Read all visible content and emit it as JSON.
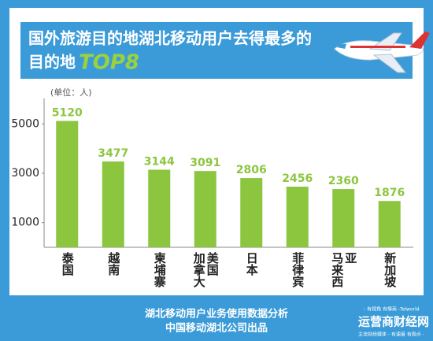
{
  "chart_data": {
    "type": "bar",
    "title": "国外旅游目的地湖北移动用户去得最多的",
    "title_line2": "目的地",
    "title_highlight": "TOP8",
    "unit_label": "(单位：人)",
    "categories": [
      "泰国",
      "越南",
      "柬埔寨",
      "加拿大 美国",
      "日本",
      "菲律宾",
      "马来西亚",
      "新加坡"
    ],
    "values": [
      5120,
      3477,
      3144,
      3091,
      2806,
      2456,
      2360,
      1876
    ],
    "color": "#8cc63f",
    "ylim": [
      0,
      6000
    ],
    "yticks": [
      1000,
      3000,
      5000
    ],
    "footer": [
      "湖北移动用户业务使用数据分析",
      "中国移动湖北公司出品"
    ],
    "watermark": {
      "tagline": "- 有视角 有情商 -Telworld",
      "name": "运营商财经网",
      "sub": "主流财经媒体 - 有速度 有观点 -"
    }
  }
}
